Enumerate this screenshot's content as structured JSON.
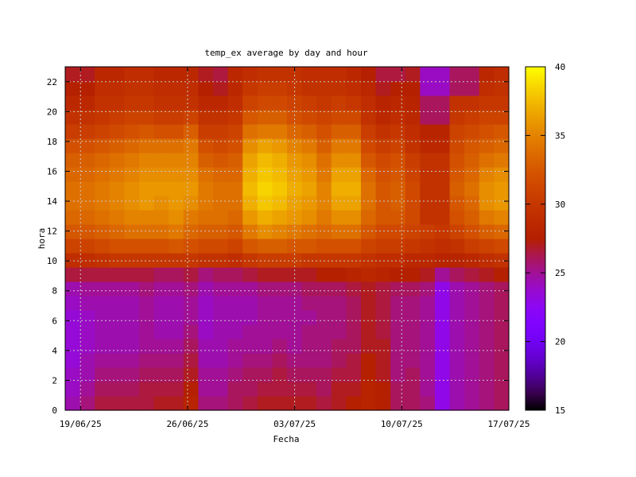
{
  "chart_data": {
    "type": "heatmap",
    "title": "temp_ex average by day and hour",
    "xlabel": "Fecha",
    "ylabel": "hora",
    "x_tick_labels": [
      "19/06/25",
      "26/06/25",
      "03/07/25",
      "10/07/25",
      "17/07/25"
    ],
    "y_tick_labels": [
      "0",
      "2",
      "4",
      "6",
      "8",
      "10",
      "12",
      "14",
      "16",
      "18",
      "20",
      "22"
    ],
    "colorbar_tick_labels": [
      "15",
      "20",
      "25",
      "30",
      "35",
      "40"
    ],
    "x_range": [
      "18/06/25",
      "17/07/25"
    ],
    "y_range": [
      0,
      23
    ],
    "color_range": [
      15,
      40
    ],
    "palette": "black-purple-red-orange-yellow",
    "grid": true,
    "dates": [
      "18/06/25",
      "19/06/25",
      "20/06/25",
      "21/06/25",
      "22/06/25",
      "23/06/25",
      "24/06/25",
      "25/06/25",
      "26/06/25",
      "27/06/25",
      "28/06/25",
      "29/06/25",
      "30/06/25",
      "01/07/25",
      "02/07/25",
      "03/07/25",
      "04/07/25",
      "05/07/25",
      "06/07/25",
      "07/07/25",
      "08/07/25",
      "09/07/25",
      "10/07/25",
      "11/07/25",
      "12/07/25",
      "13/07/25",
      "14/07/25",
      "15/07/25",
      "16/07/25",
      "17/07/25"
    ],
    "hours": [
      0,
      1,
      2,
      3,
      4,
      5,
      6,
      7,
      8,
      9,
      10,
      11,
      12,
      13,
      14,
      15,
      16,
      17,
      18,
      19,
      20,
      21,
      22,
      23
    ],
    "values": [
      [
        24.5,
        24.0,
        24.0,
        23.5,
        23.5,
        23.5,
        23.5,
        24.0,
        24.5,
        26.5,
        29.0,
        31.0,
        32.5,
        33.5,
        34.0,
        34.0,
        33.5,
        33.0,
        32.0,
        30.5,
        29.5,
        28.5,
        27.5,
        27.0
      ],
      [
        25.5,
        25.0,
        24.5,
        24.5,
        24.0,
        24.0,
        24.0,
        24.5,
        25.0,
        26.5,
        29.0,
        31.0,
        32.5,
        33.5,
        34.0,
        34.0,
        33.5,
        33.0,
        32.0,
        30.5,
        29.5,
        28.5,
        27.5,
        27.0
      ],
      [
        26.5,
        26.0,
        25.5,
        25.0,
        24.5,
        24.5,
        24.5,
        24.5,
        25.0,
        26.5,
        29.5,
        31.5,
        33.0,
        34.0,
        34.5,
        34.5,
        34.0,
        33.5,
        32.5,
        31.0,
        30.0,
        29.5,
        29.0,
        28.5
      ],
      [
        26.5,
        26.0,
        25.5,
        25.0,
        24.5,
        24.5,
        24.5,
        24.5,
        25.0,
        26.5,
        30.0,
        32.0,
        33.5,
        34.5,
        35.0,
        35.0,
        34.5,
        34.0,
        33.0,
        31.5,
        30.5,
        29.5,
        29.0,
        28.5
      ],
      [
        26.5,
        26.0,
        25.5,
        25.0,
        24.5,
        24.5,
        24.5,
        24.5,
        25.0,
        26.5,
        30.0,
        32.0,
        34.0,
        35.0,
        35.5,
        35.5,
        35.0,
        34.5,
        33.5,
        32.0,
        31.0,
        30.0,
        29.5,
        29.0
      ],
      [
        26.5,
        26.5,
        26.0,
        25.5,
        25.0,
        25.0,
        25.0,
        25.0,
        25.5,
        26.5,
        30.0,
        32.0,
        34.0,
        35.0,
        36.0,
        36.0,
        35.5,
        35.0,
        34.0,
        32.5,
        31.0,
        30.0,
        29.5,
        29.0
      ],
      [
        27.0,
        26.5,
        26.0,
        25.5,
        25.0,
        24.5,
        24.5,
        24.5,
        25.0,
        26.0,
        30.0,
        32.0,
        34.0,
        35.0,
        35.5,
        36.0,
        35.5,
        35.0,
        34.0,
        32.0,
        30.5,
        29.5,
        29.0,
        28.5
      ],
      [
        27.0,
        26.5,
        26.0,
        25.5,
        25.0,
        24.5,
        24.5,
        24.5,
        25.0,
        26.0,
        30.0,
        32.5,
        34.5,
        35.5,
        36.0,
        36.0,
        35.5,
        35.0,
        34.0,
        32.0,
        30.5,
        29.5,
        29.0,
        28.5
      ],
      [
        28.0,
        27.5,
        27.0,
        26.5,
        26.0,
        25.5,
        25.0,
        25.0,
        25.5,
        26.5,
        30.0,
        32.0,
        33.5,
        34.5,
        35.5,
        36.0,
        35.5,
        35.0,
        34.5,
        33.0,
        31.0,
        29.5,
        29.0,
        28.5
      ],
      [
        25.5,
        25.0,
        25.0,
        24.5,
        24.5,
        24.0,
        24.0,
        24.0,
        24.5,
        25.5,
        29.5,
        31.5,
        33.0,
        34.0,
        34.5,
        34.5,
        34.0,
        33.0,
        32.0,
        30.5,
        29.5,
        28.5,
        27.5,
        27.0
      ],
      [
        25.5,
        25.0,
        25.0,
        24.5,
        24.5,
        24.5,
        24.5,
        24.5,
        25.0,
        26.0,
        29.5,
        31.5,
        33.0,
        34.0,
        34.0,
        34.0,
        33.5,
        32.5,
        31.5,
        30.5,
        29.5,
        28.5,
        27.0,
        26.5
      ],
      [
        26.0,
        26.0,
        25.5,
        25.0,
        25.0,
        24.5,
        24.5,
        24.5,
        25.0,
        26.0,
        29.0,
        31.0,
        32.5,
        33.5,
        34.0,
        34.0,
        33.5,
        33.0,
        32.0,
        31.0,
        30.0,
        29.0,
        28.5,
        28.5
      ],
      [
        26.5,
        26.0,
        26.0,
        25.5,
        25.0,
        25.0,
        24.5,
        24.5,
        25.0,
        26.5,
        30.0,
        32.5,
        34.5,
        36.0,
        37.0,
        37.5,
        37.0,
        36.5,
        35.5,
        34.0,
        32.5,
        31.0,
        30.0,
        29.0
      ],
      [
        27.0,
        26.5,
        26.0,
        25.5,
        25.0,
        25.0,
        25.0,
        25.0,
        25.5,
        27.0,
        30.5,
        33.0,
        35.5,
        37.0,
        38.0,
        38.5,
        38.0,
        37.5,
        36.5,
        34.5,
        33.0,
        31.5,
        30.5,
        29.5
      ],
      [
        27.0,
        26.5,
        26.5,
        26.0,
        25.5,
        25.0,
        25.0,
        25.0,
        25.5,
        27.0,
        30.5,
        33.0,
        35.0,
        36.5,
        37.5,
        38.0,
        37.5,
        37.0,
        36.0,
        34.5,
        33.0,
        31.5,
        30.5,
        29.5
      ],
      [
        27.0,
        26.5,
        26.0,
        25.5,
        25.0,
        25.0,
        25.0,
        25.0,
        25.5,
        27.0,
        30.5,
        32.5,
        34.5,
        36.0,
        36.5,
        37.0,
        36.5,
        36.0,
        35.0,
        33.5,
        32.0,
        31.0,
        30.0,
        29.5
      ],
      [
        27.0,
        26.5,
        26.0,
        25.5,
        25.5,
        25.5,
        25.0,
        25.5,
        26.0,
        27.0,
        30.0,
        32.5,
        34.0,
        35.5,
        36.0,
        36.5,
        36.0,
        35.5,
        34.5,
        33.0,
        31.5,
        30.5,
        29.5,
        29.0
      ],
      [
        26.5,
        26.0,
        26.0,
        25.5,
        25.5,
        25.5,
        25.5,
        25.5,
        26.0,
        27.5,
        30.0,
        32.0,
        33.5,
        34.5,
        35.0,
        35.0,
        34.5,
        34.0,
        33.0,
        32.0,
        31.0,
        30.0,
        29.5,
        29.0
      ],
      [
        27.0,
        27.0,
        26.5,
        26.0,
        26.0,
        25.5,
        25.5,
        25.5,
        26.0,
        27.5,
        30.0,
        32.0,
        34.0,
        35.5,
        36.5,
        37.0,
        36.5,
        35.5,
        34.5,
        33.0,
        31.5,
        30.5,
        29.5,
        29.0
      ],
      [
        27.5,
        27.0,
        26.5,
        26.5,
        26.0,
        26.0,
        26.0,
        26.0,
        26.5,
        28.0,
        30.0,
        32.0,
        34.0,
        35.5,
        36.5,
        37.0,
        36.5,
        35.5,
        34.5,
        33.0,
        31.5,
        30.0,
        29.0,
        28.5
      ],
      [
        28.0,
        28.0,
        27.5,
        27.5,
        27.0,
        27.0,
        27.0,
        27.0,
        27.0,
        28.5,
        29.5,
        31.0,
        32.5,
        33.5,
        34.0,
        34.0,
        33.5,
        32.5,
        31.5,
        30.5,
        29.5,
        29.0,
        28.5,
        27.5
      ],
      [
        27.5,
        27.5,
        27.0,
        27.0,
        27.0,
        26.5,
        26.5,
        26.5,
        26.5,
        28.0,
        29.0,
        30.5,
        31.5,
        32.5,
        32.5,
        32.5,
        32.0,
        31.5,
        30.5,
        29.5,
        28.5,
        28.0,
        27.0,
        26.5
      ],
      [
        26.0,
        26.0,
        25.5,
        25.5,
        25.5,
        25.5,
        25.5,
        25.5,
        26.0,
        27.5,
        29.0,
        30.5,
        31.5,
        32.5,
        33.0,
        33.0,
        32.5,
        32.0,
        31.0,
        30.0,
        29.0,
        28.5,
        27.5,
        26.5
      ],
      [
        26.0,
        26.0,
        26.0,
        25.5,
        25.5,
        25.5,
        25.5,
        25.5,
        26.0,
        27.5,
        28.5,
        30.0,
        31.0,
        31.5,
        31.5,
        31.5,
        31.0,
        30.5,
        29.5,
        29.0,
        28.5,
        28.0,
        27.5,
        27.0
      ],
      [
        25.5,
        25.0,
        25.0,
        25.0,
        25.0,
        25.0,
        25.0,
        25.0,
        25.5,
        27.0,
        28.5,
        29.5,
        30.5,
        29.5,
        29.5,
        29.5,
        29.5,
        29.5,
        28.5,
        28.0,
        26.0,
        26.0,
        24.0,
        24.0
      ],
      [
        23.0,
        23.0,
        23.0,
        23.0,
        23.0,
        23.0,
        23.0,
        23.0,
        23.0,
        25.0,
        28.0,
        29.0,
        30.0,
        29.5,
        29.5,
        29.5,
        29.5,
        29.5,
        28.5,
        28.0,
        26.0,
        26.0,
        24.0,
        24.0
      ],
      [
        24.5,
        24.5,
        24.5,
        24.5,
        24.5,
        24.5,
        24.5,
        24.5,
        24.5,
        26.0,
        28.0,
        29.5,
        31.0,
        32.0,
        32.5,
        33.0,
        32.5,
        32.0,
        31.5,
        31.0,
        30.0,
        29.5,
        26.0,
        26.0
      ],
      [
        25.0,
        25.0,
        25.0,
        25.0,
        25.0,
        25.0,
        25.0,
        25.0,
        25.0,
        26.5,
        28.5,
        30.5,
        32.0,
        33.0,
        33.5,
        34.0,
        33.5,
        33.0,
        32.5,
        31.5,
        30.5,
        29.5,
        26.0,
        26.0
      ],
      [
        25.5,
        25.5,
        25.5,
        25.5,
        25.5,
        25.5,
        25.5,
        25.5,
        25.5,
        27.0,
        29.0,
        31.0,
        33.0,
        34.5,
        35.5,
        35.5,
        35.0,
        34.0,
        33.0,
        32.0,
        31.0,
        30.0,
        29.0,
        28.5
      ],
      [
        26.0,
        26.0,
        26.0,
        26.0,
        26.0,
        26.0,
        26.0,
        26.0,
        26.0,
        27.5,
        29.5,
        31.5,
        33.5,
        35.0,
        36.0,
        36.0,
        35.5,
        34.5,
        33.5,
        32.5,
        31.0,
        30.0,
        29.5,
        29.0
      ]
    ]
  }
}
